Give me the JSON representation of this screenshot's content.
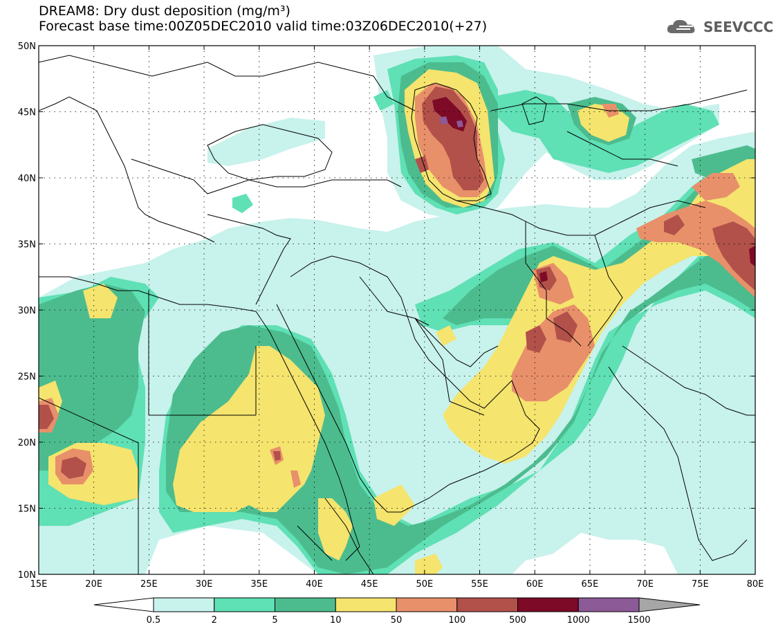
{
  "header": {
    "title_line1": "DREAM8: Dry dust deposition (mg/m³)",
    "title_line2": "Forecast base time:00Z05DEC2010 valid time:03Z06DEC2010(+27)"
  },
  "logo": {
    "text": "SEEVCCC",
    "icon": "cloud-icon"
  },
  "map": {
    "lon_range": [
      15,
      80
    ],
    "lat_range": [
      10,
      50
    ],
    "lat_ticks": [
      "10N",
      "15N",
      "20N",
      "25N",
      "30N",
      "35N",
      "40N",
      "45N",
      "50N"
    ],
    "lon_ticks": [
      "15E",
      "20E",
      "25E",
      "30E",
      "35E",
      "40E",
      "45E",
      "50E",
      "55E",
      "60E",
      "65E",
      "70E",
      "75E",
      "80E"
    ],
    "grid": true
  },
  "colorbar": {
    "labels": [
      "0.5",
      "2",
      "5",
      "10",
      "50",
      "100",
      "500",
      "1000",
      "1500"
    ],
    "colors": [
      "#ffffff",
      "#c8f2ec",
      "#5fe0b5",
      "#4cbc8e",
      "#f5e46e",
      "#e8906a",
      "#b2504a",
      "#7d0a26",
      "#8c5a96",
      "#a6a6a6"
    ]
  }
}
